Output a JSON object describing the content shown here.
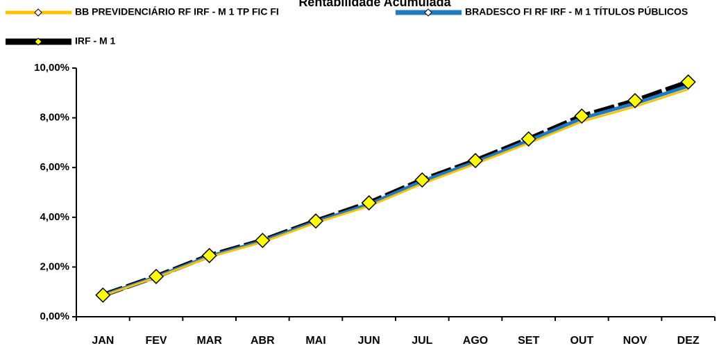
{
  "chart_data": {
    "type": "line",
    "title": "Rentabilidade Acumulada",
    "categories": [
      "JAN",
      "FEV",
      "MAR",
      "ABR",
      "MAI",
      "JUN",
      "JUL",
      "AGO",
      "SET",
      "OUT",
      "NOV",
      "DEZ"
    ],
    "series": [
      {
        "name": "BB PREVIDENCIÁRIO RF IRF - M 1 TP FIC FI",
        "color": "#ffc000",
        "values": [
          0.85,
          1.58,
          2.4,
          3.0,
          3.78,
          4.45,
          5.35,
          6.15,
          6.98,
          7.85,
          8.45,
          9.15
        ]
      },
      {
        "name": "BRADESCO FI RF IRF - M 1 TÍTULOS PÚBLICOS",
        "color": "#1f7ac0",
        "values": [
          0.86,
          1.6,
          2.43,
          3.04,
          3.82,
          4.52,
          5.45,
          6.22,
          7.08,
          7.98,
          8.58,
          9.28
        ]
      },
      {
        "name": "IRF - M 1",
        "color": "#000000",
        "values": [
          0.87,
          1.62,
          2.46,
          3.07,
          3.85,
          4.58,
          5.5,
          6.28,
          7.15,
          8.07,
          8.69,
          9.44
        ]
      }
    ],
    "ylim": [
      0,
      10
    ],
    "yticks": [
      {
        "value": 0,
        "label": "0,00%"
      },
      {
        "value": 2,
        "label": "2,00%"
      },
      {
        "value": 4,
        "label": "4,00%"
      },
      {
        "value": 6,
        "label": "6,00%"
      },
      {
        "value": 8,
        "label": "8,00%"
      },
      {
        "value": 10,
        "label": "10,00%"
      }
    ]
  }
}
